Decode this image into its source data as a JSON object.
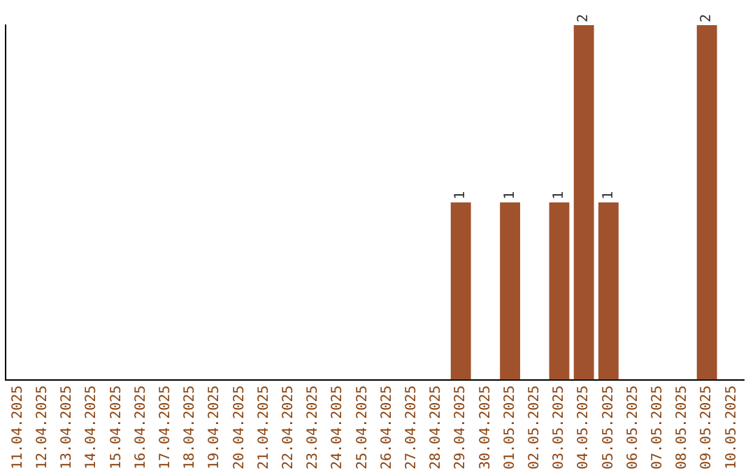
{
  "chart_data": {
    "type": "bar",
    "categories": [
      "11.04.2025",
      "12.04.2025",
      "13.04.2025",
      "14.04.2025",
      "15.04.2025",
      "16.04.2025",
      "17.04.2025",
      "18.04.2025",
      "19.04.2025",
      "20.04.2025",
      "21.04.2025",
      "22.04.2025",
      "23.04.2025",
      "24.04.2025",
      "25.04.2025",
      "26.04.2025",
      "27.04.2025",
      "28.04.2025",
      "29.04.2025",
      "30.04.2025",
      "01.05.2025",
      "02.05.2025",
      "03.05.2025",
      "04.05.2025",
      "05.05.2025",
      "06.05.2025",
      "07.05.2025",
      "08.05.2025",
      "09.05.2025",
      "10.05.2025"
    ],
    "values": [
      null,
      null,
      null,
      null,
      null,
      null,
      null,
      null,
      null,
      null,
      null,
      null,
      null,
      null,
      null,
      null,
      null,
      null,
      1,
      null,
      1,
      null,
      1,
      2,
      1,
      null,
      null,
      null,
      2,
      null
    ],
    "data_labels": true,
    "color": "#a0522d",
    "grid": false,
    "legend": false,
    "tick_labels": "x"
  }
}
